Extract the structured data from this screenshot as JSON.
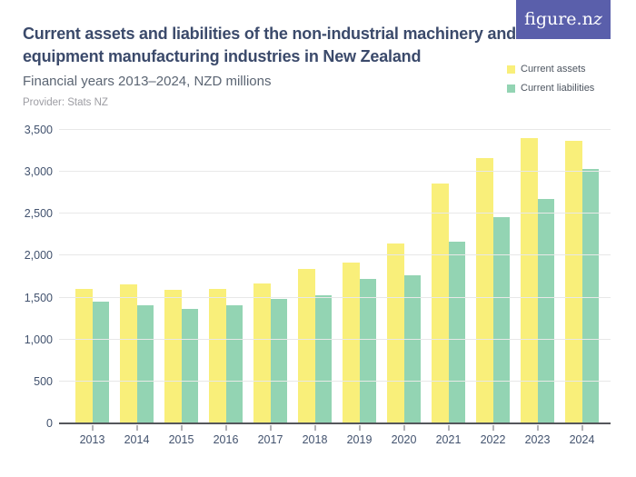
{
  "header": {
    "title": "Current assets and liabilities of the non-industrial machinery and equipment manufacturing industries in New Zealand",
    "subtitle": "Financial years 2013–2024, NZD millions",
    "provider": "Provider: Stats NZ",
    "logo_text_main": "figure.n",
    "logo_text_swash": "z"
  },
  "legend": [
    {
      "label": "Current assets",
      "color": "#f9ef7a"
    },
    {
      "label": "Current liabilities",
      "color": "#93d4b3"
    }
  ],
  "colors": {
    "title": "#3b4a6b",
    "subtitle": "#5b6573",
    "provider": "#9d9da3",
    "axis_label": "#42526e",
    "gridline": "#e8e8e8",
    "baseline": "#54565b",
    "tick": "#b4b4b8",
    "logo_background": "#5a5fab",
    "assets_bar": "#f9ef7a",
    "liabilities_bar": "#93d4b3",
    "background": "#ffffff"
  },
  "chart_data": {
    "type": "bar",
    "title": "Current assets and liabilities of the non-industrial machinery and equipment manufacturing industries in New Zealand",
    "subtitle": "Financial years 2013–2024, NZD millions",
    "provider": "Provider: Stats NZ",
    "units": "NZD millions",
    "categories": [
      "2013",
      "2014",
      "2015",
      "2016",
      "2017",
      "2018",
      "2019",
      "2020",
      "2021",
      "2022",
      "2023",
      "2024"
    ],
    "series": [
      {
        "name": "Current assets",
        "color": "#f9ef7a",
        "values": [
          1600,
          1660,
          1590,
          1600,
          1670,
          1840,
          1920,
          2150,
          2860,
          3160,
          3400,
          3370
        ]
      },
      {
        "name": "Current liabilities",
        "color": "#93d4b3",
        "values": [
          1455,
          1410,
          1370,
          1410,
          1490,
          1530,
          1720,
          1770,
          2170,
          2460,
          2680,
          3040
        ]
      }
    ],
    "xlabel": "",
    "ylabel": "",
    "ylim": [
      0,
      3500
    ],
    "ytick_interval": 500,
    "ytick_labels": [
      "0",
      "500",
      "1,000",
      "1,500",
      "2,000",
      "2,500",
      "3,000",
      "3,500"
    ],
    "grid": true,
    "legend_position": "top-right"
  }
}
